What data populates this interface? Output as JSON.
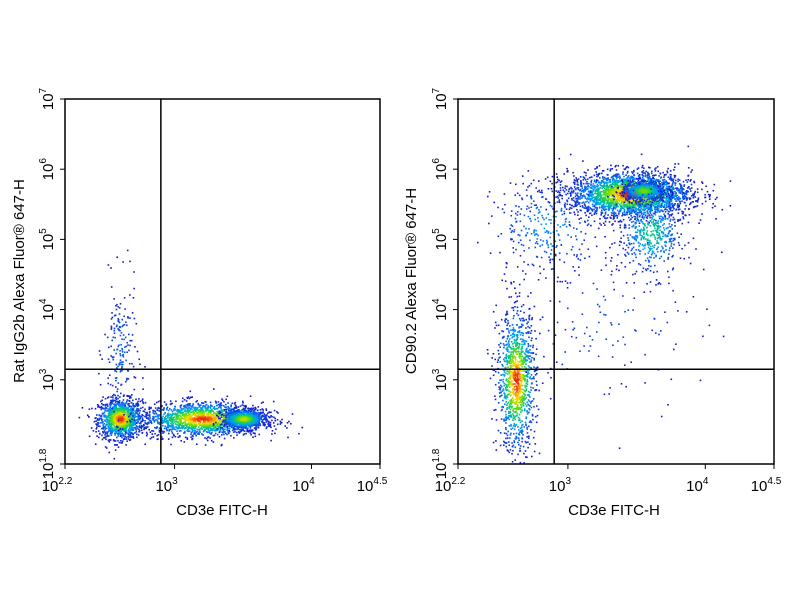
{
  "chart_data": [
    {
      "type": "scatter",
      "xlabel": "CD3e FITC-H",
      "ylabel": "Rat IgG2b Alexa Fluor® 647-H",
      "x_scale": "log",
      "y_scale": "log",
      "xlim_log10": [
        2.2,
        4.5
      ],
      "ylim_log10": [
        1.8,
        7
      ],
      "x_ticks": [
        {
          "base": "10",
          "exp": "2.2"
        },
        {
          "base": "10",
          "exp": "3"
        },
        {
          "base": "10",
          "exp": "4"
        },
        {
          "base": "10",
          "exp": "4.5"
        }
      ],
      "y_ticks": [
        {
          "base": "10",
          "exp": "1.8"
        },
        {
          "base": "10",
          "exp": "3"
        },
        {
          "base": "10",
          "exp": "4"
        },
        {
          "base": "10",
          "exp": "5"
        },
        {
          "base": "10",
          "exp": "6"
        },
        {
          "base": "10",
          "exp": "7"
        }
      ],
      "gate_log10": {
        "x": 2.9,
        "y": 3.15
      },
      "color_scale": "density (blue → cyan → green → yellow → red)",
      "populations": [
        {
          "x_log10": 2.6,
          "y_log10": 2.45,
          "spread_x": 0.08,
          "spread_y": 0.14,
          "count": 1200
        },
        {
          "x_log10": 2.6,
          "y_log10": 3.4,
          "spread_x": 0.06,
          "spread_y": 0.5,
          "count": 180
        },
        {
          "x_log10": 3.2,
          "y_log10": 2.45,
          "spread_x": 0.22,
          "spread_y": 0.12,
          "count": 1700
        },
        {
          "x_log10": 3.5,
          "y_log10": 2.45,
          "spread_x": 0.08,
          "spread_y": 0.07,
          "count": 800
        }
      ]
    },
    {
      "type": "scatter",
      "xlabel": "CD3e FITC-H",
      "ylabel": "CD90.2 Alexa Fluor® 647-H",
      "x_scale": "log",
      "y_scale": "log",
      "xlim_log10": [
        2.2,
        4.5
      ],
      "ylim_log10": [
        1.8,
        7
      ],
      "x_ticks": [
        {
          "base": "10",
          "exp": "2.2"
        },
        {
          "base": "10",
          "exp": "3"
        },
        {
          "base": "10",
          "exp": "4"
        },
        {
          "base": "10",
          "exp": "4.5"
        }
      ],
      "y_ticks": [
        {
          "base": "10",
          "exp": "1.8"
        },
        {
          "base": "10",
          "exp": "3"
        },
        {
          "base": "10",
          "exp": "4"
        },
        {
          "base": "10",
          "exp": "5"
        },
        {
          "base": "10",
          "exp": "6"
        },
        {
          "base": "10",
          "exp": "7"
        }
      ],
      "gate_log10": {
        "x": 2.9,
        "y": 3.15
      },
      "color_scale": "density (blue → cyan → green → yellow → red)",
      "populations": [
        {
          "x_log10": 2.62,
          "y_log10": 3.0,
          "spread_x": 0.07,
          "spread_y": 0.5,
          "count": 1100
        },
        {
          "x_log10": 3.45,
          "y_log10": 5.65,
          "spread_x": 0.22,
          "spread_y": 0.16,
          "count": 2600
        },
        {
          "x_log10": 3.55,
          "y_log10": 5.7,
          "spread_x": 0.08,
          "spread_y": 0.07,
          "count": 700
        },
        {
          "x_log10": 3.6,
          "y_log10": 5.1,
          "spread_x": 0.12,
          "spread_y": 0.3,
          "count": 500
        },
        {
          "x_log10": 2.85,
          "y_log10": 5.2,
          "spread_x": 0.2,
          "spread_y": 0.35,
          "count": 300
        },
        {
          "x_log10": 3.3,
          "y_log10": 3.8,
          "spread_x": 0.35,
          "spread_y": 0.6,
          "count": 120
        }
      ]
    }
  ]
}
